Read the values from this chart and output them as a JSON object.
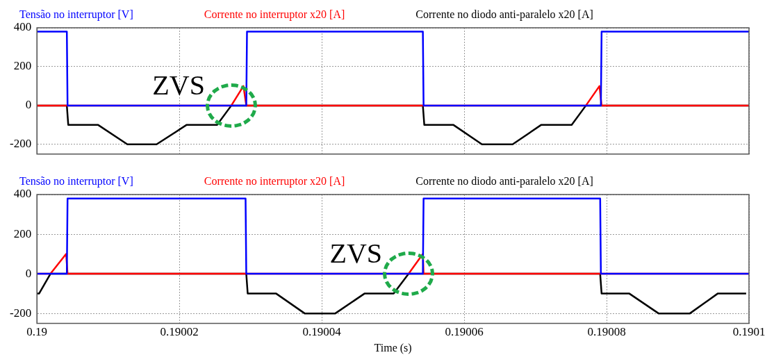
{
  "chart_data": [
    {
      "type": "line",
      "tick_labels": "y",
      "legend": "top",
      "grid": true,
      "marker": "none",
      "xlim": [
        0.19,
        0.1901
      ],
      "xticks": [
        0.19,
        0.19002,
        0.19004,
        0.19006,
        0.19008,
        0.1901
      ],
      "ylim": [
        -250,
        400
      ],
      "yticks": [
        -200,
        0,
        200,
        400
      ],
      "annotations": [
        {
          "text": "ZVS",
          "x": 0.1900273,
          "y": 0
        }
      ],
      "series": [
        {
          "name": "Tensão no interruptor [V]",
          "color": "#0000ff",
          "x": [
            0.19,
            0.1900042,
            0.1900043,
            0.1900294,
            0.1900295,
            0.1900542,
            0.1900543,
            0.1900792,
            0.1900793,
            0.1901
          ],
          "values": [
            380,
            380,
            0,
            0,
            380,
            380,
            0,
            0,
            380,
            380
          ]
        },
        {
          "name": "Corrente no interruptor x20 [A]",
          "color": "#ff0000",
          "x": [
            0.19,
            0.1900273,
            0.190029,
            0.1900294,
            0.1900771,
            0.190079,
            0.1900793,
            0.1901
          ],
          "values": [
            0,
            0,
            100,
            0,
            0,
            100,
            0,
            0
          ]
        },
        {
          "name": "Corrente no diodo anti-paralelo x20 [A]",
          "color": "#000000",
          "x": [
            0.19,
            0.1900042,
            0.1900044,
            0.1900086,
            0.1900127,
            0.1900168,
            0.190021,
            0.1900253,
            0.1900273,
            0.1900542,
            0.1900544,
            0.1900585,
            0.1900625,
            0.1900668,
            0.1900708,
            0.1900751,
            0.1900771,
            0.1901
          ],
          "values": [
            0,
            0,
            -100,
            -100,
            -200,
            -200,
            -100,
            -100,
            0,
            0,
            -100,
            -100,
            -200,
            -200,
            -100,
            -100,
            0,
            0
          ]
        }
      ]
    },
    {
      "type": "line",
      "legend": "top",
      "grid": true,
      "marker": "none",
      "xlabel": "Time (s)",
      "xlim": [
        0.19,
        0.1901
      ],
      "xticks": [
        0.19,
        0.19002,
        0.19004,
        0.19006,
        0.19008,
        0.1901
      ],
      "ylim": [
        -250,
        400
      ],
      "yticks": [
        -200,
        0,
        200,
        400
      ],
      "annotations": [
        {
          "text": "ZVS",
          "x": 0.1900522,
          "y": 0
        }
      ],
      "series": [
        {
          "name": "Tensão no interruptor [V]",
          "color": "#0000ff",
          "x": [
            0.19,
            0.1900042,
            0.1900043,
            0.1900293,
            0.1900294,
            0.1900542,
            0.1900543,
            0.1900791,
            0.1900792,
            0.1901
          ],
          "values": [
            0,
            0,
            380,
            380,
            0,
            0,
            380,
            380,
            0,
            0
          ]
        },
        {
          "name": "Corrente no interruptor x20 [A]",
          "color": "#ff0000",
          "x": [
            0.19,
            0.1900019,
            0.1900041,
            0.1900043,
            0.1900522,
            0.1900542,
            0.1900543,
            0.1901
          ],
          "values": [
            0,
            0,
            100,
            0,
            0,
            100,
            0,
            0
          ]
        },
        {
          "name": "Corrente no diodo anti-paralelo x20 [A]",
          "color": "#000000",
          "x": [
            0.19,
            0.1900003,
            0.1900019,
            0.1900294,
            0.1900296,
            0.1900336,
            0.1900376,
            0.1900419,
            0.190046,
            0.1900501,
            0.1900522,
            0.1900791,
            0.1900793,
            0.1900832,
            0.1900873,
            0.1900917,
            0.1900956,
            0.1900996
          ],
          "values": [
            -100,
            -100,
            0,
            0,
            -100,
            -100,
            -200,
            -200,
            -100,
            -100,
            0,
            0,
            -100,
            -100,
            -200,
            -200,
            -100,
            -100
          ]
        }
      ]
    }
  ]
}
